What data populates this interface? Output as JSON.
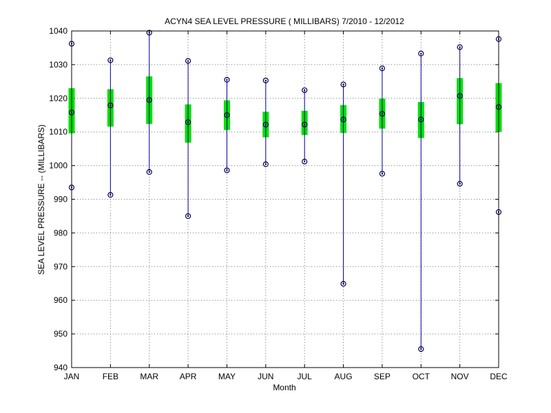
{
  "chart_data": {
    "type": "box",
    "title": "ACYN4  SEA LEVEL PRESSURE ( MILLIBARS) 7/2010 - 12/2012",
    "xlabel": "Month",
    "ylabel": "SEA LEVEL PRESSURE -- (MILLIBARS)",
    "ylim": [
      940,
      1040
    ],
    "yticks": [
      940,
      950,
      960,
      970,
      980,
      990,
      1000,
      1010,
      1020,
      1030,
      1040
    ],
    "grid": true,
    "categories": [
      "JAN",
      "FEB",
      "MAR",
      "APR",
      "MAY",
      "JUN",
      "JUL",
      "AUG",
      "SEP",
      "OCT",
      "NOV",
      "DEC"
    ],
    "series": [
      {
        "max": [
          1036.2,
          1031.3,
          1039.5,
          1031.1,
          1025.5,
          1025.3,
          1022.4,
          1024.1,
          1028.9,
          1033.3,
          1035.2,
          1037.6
        ],
        "box_high": [
          1023.0,
          1022.7,
          1026.5,
          1018.2,
          1019.4,
          1016.0,
          1016.3,
          1018.0,
          1019.9,
          1018.9,
          1026.0,
          1024.5
        ],
        "mean": [
          1015.8,
          1017.9,
          1019.5,
          1012.9,
          1015.0,
          1012.2,
          1012.2,
          1013.7,
          1015.4,
          1013.7,
          1020.7,
          1017.4
        ],
        "box_low": [
          1009.6,
          1011.6,
          1012.4,
          1006.8,
          1010.6,
          1008.4,
          1009.1,
          1009.7,
          1011.0,
          1008.2,
          1012.3,
          1010.0
        ],
        "min": [
          993.5,
          991.3,
          998.1,
          985.0,
          998.6,
          1000.4,
          1001.2,
          964.9,
          997.6,
          945.5,
          994.6,
          986.2
        ]
      }
    ],
    "colors": {
      "box": "#00e000",
      "whisker": "#0000a0",
      "marker": "#000050"
    }
  }
}
